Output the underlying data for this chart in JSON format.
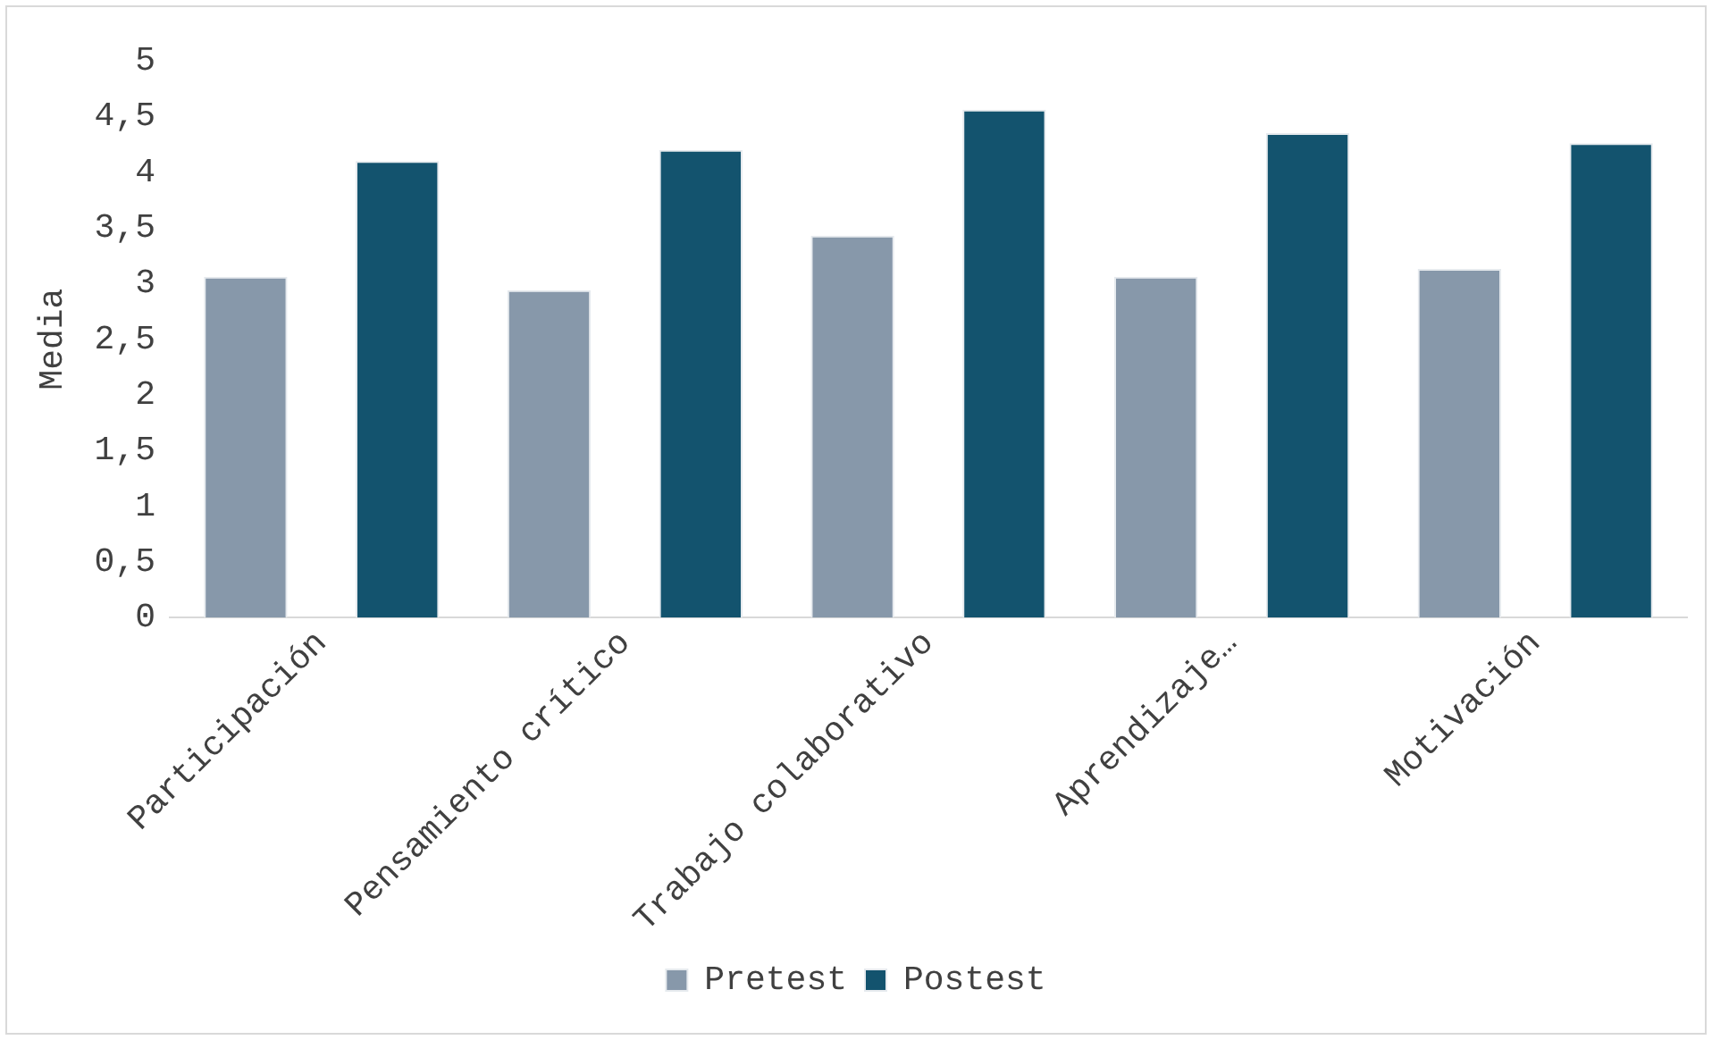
{
  "chart_data": {
    "type": "bar",
    "ylabel": "Media",
    "categories": [
      "Participación",
      "Pensamiento crítico",
      "Trabajo colaborativo",
      "Aprendizaje…",
      "Motivación"
    ],
    "series": [
      {
        "name": "Pretest",
        "color": "#8798aa",
        "values": [
          3.06,
          2.94,
          3.43,
          3.06,
          3.13
        ]
      },
      {
        "name": "Postest",
        "color": "#13536e",
        "values": [
          4.1,
          4.2,
          4.56,
          4.35,
          4.26
        ]
      }
    ],
    "ylim": [
      0,
      5
    ],
    "yticks": [
      0,
      {
        "value": 0.5,
        "label": "0,5"
      },
      1,
      {
        "value": 1.5,
        "label": "1,5"
      },
      2,
      {
        "value": 2.5,
        "label": "2,5"
      },
      3,
      {
        "value": 3.5,
        "label": "3,5"
      },
      4,
      {
        "value": 4.5,
        "label": "4,5"
      },
      5
    ],
    "grid": false,
    "legend": "bottom"
  }
}
